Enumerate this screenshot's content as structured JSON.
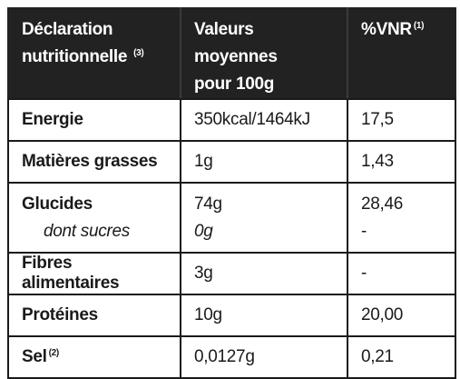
{
  "table": {
    "header": {
      "declaration_line1": "Déclaration",
      "declaration_line2": "nutritionnelle",
      "declaration_note": "(3)",
      "values_line1": "Valeurs moyennes",
      "values_line2": "pour 100g",
      "vnr": "%VNR",
      "vnr_note": "(1)"
    },
    "rows": [
      {
        "label": "Energie",
        "value": "350kcal/1464kJ",
        "vnr": "17,5"
      },
      {
        "label": "Matières grasses",
        "value": "1g",
        "vnr": "1,43"
      },
      {
        "label": "Glucides",
        "value": "74g",
        "vnr": "28,46",
        "sub_label": "dont sucres",
        "sub_value": "0g",
        "sub_vnr": "-"
      },
      {
        "label": "Fibres alimentaires",
        "value": "3g",
        "vnr": "-"
      },
      {
        "label": "Protéines",
        "value": "10g",
        "vnr": "20,00"
      },
      {
        "label": "Sel",
        "label_note": "(2)",
        "value": "0,0127g",
        "vnr": "0,21"
      }
    ]
  }
}
